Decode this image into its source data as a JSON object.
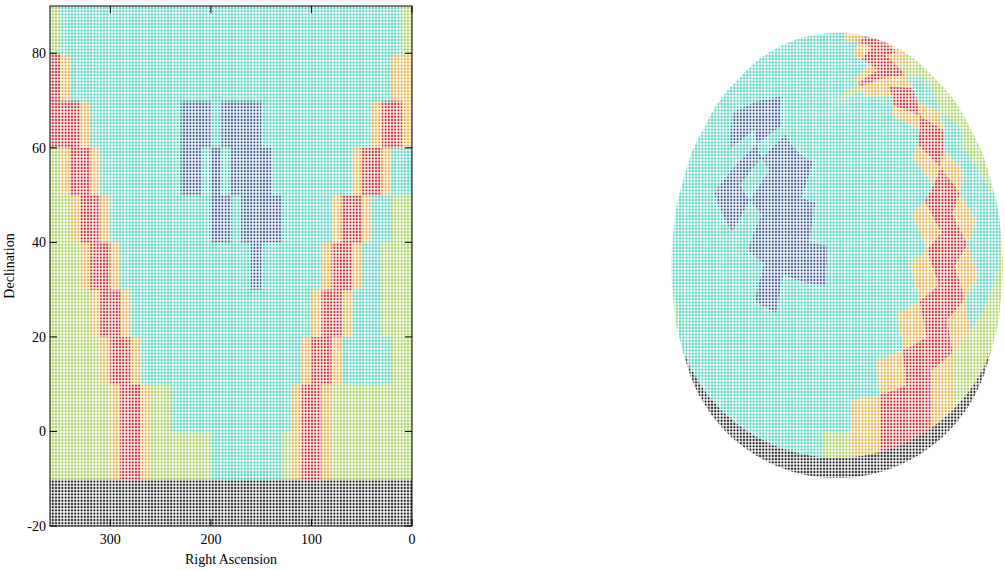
{
  "chart_data": {
    "type": "heatmap",
    "xlabel": "Right Ascension",
    "ylabel": "Declination",
    "xlim": [
      360,
      0
    ],
    "ylim": [
      -20,
      90
    ],
    "xticks": [
      300,
      200,
      100,
      0
    ],
    "yticks": [
      -20,
      0,
      20,
      40,
      60,
      80
    ],
    "colors": [
      "#222222",
      "#3c5a96",
      "#3fcfb8",
      "#9ccf4a",
      "#e8a834",
      "#c0282a"
    ],
    "xbins": [
      360,
      350,
      340,
      330,
      320,
      310,
      300,
      290,
      280,
      270,
      260,
      250,
      240,
      230,
      220,
      210,
      200,
      190,
      180,
      170,
      160,
      150,
      140,
      130,
      120,
      110,
      100,
      90,
      80,
      70,
      60,
      50,
      40,
      30,
      20,
      10,
      0
    ],
    "ybins": [
      -20,
      -10,
      0,
      10,
      20,
      30,
      40,
      50,
      60,
      70,
      80,
      90
    ],
    "cells": [
      [
        0,
        0,
        0,
        0,
        0,
        0,
        0,
        0,
        0,
        0,
        0,
        0,
        0,
        0,
        0,
        0,
        0,
        0,
        0,
        0,
        0,
        0,
        0,
        0,
        0,
        0,
        0,
        0,
        0,
        0,
        0,
        0,
        0,
        0,
        0,
        0
      ],
      [
        3,
        3,
        3,
        3,
        3,
        3,
        4,
        5,
        5,
        4,
        3,
        3,
        3,
        3,
        3,
        3,
        2,
        2,
        2,
        2,
        2,
        2,
        2,
        3,
        4,
        5,
        5,
        4,
        3,
        3,
        3,
        3,
        3,
        3,
        3,
        3
      ],
      [
        3,
        3,
        3,
        3,
        3,
        3,
        4,
        5,
        5,
        4,
        3,
        3,
        2,
        2,
        2,
        2,
        2,
        2,
        2,
        2,
        2,
        2,
        2,
        2,
        4,
        5,
        5,
        4,
        3,
        3,
        3,
        3,
        3,
        3,
        3,
        3
      ],
      [
        3,
        3,
        3,
        3,
        3,
        4,
        5,
        5,
        4,
        2,
        2,
        2,
        2,
        2,
        2,
        2,
        2,
        2,
        2,
        2,
        2,
        2,
        2,
        2,
        2,
        4,
        5,
        5,
        4,
        2,
        2,
        2,
        2,
        2,
        3,
        3
      ],
      [
        3,
        3,
        3,
        3,
        4,
        5,
        5,
        4,
        2,
        2,
        2,
        2,
        2,
        2,
        2,
        2,
        2,
        2,
        2,
        2,
        2,
        2,
        2,
        2,
        2,
        2,
        4,
        5,
        5,
        4,
        2,
        2,
        2,
        3,
        3,
        3
      ],
      [
        3,
        3,
        3,
        4,
        5,
        5,
        4,
        2,
        2,
        2,
        2,
        2,
        2,
        2,
        2,
        2,
        2,
        2,
        2,
        2,
        1,
        2,
        2,
        2,
        2,
        2,
        2,
        4,
        5,
        5,
        4,
        2,
        2,
        3,
        3,
        3
      ],
      [
        3,
        3,
        4,
        5,
        5,
        4,
        2,
        2,
        2,
        2,
        2,
        2,
        2,
        2,
        2,
        2,
        1,
        1,
        2,
        1,
        1,
        1,
        1,
        2,
        2,
        2,
        2,
        2,
        4,
        5,
        5,
        4,
        2,
        2,
        3,
        3
      ],
      [
        3,
        4,
        5,
        5,
        4,
        2,
        2,
        2,
        2,
        2,
        2,
        2,
        2,
        1,
        1,
        2,
        1,
        2,
        1,
        1,
        1,
        1,
        2,
        2,
        2,
        2,
        2,
        2,
        2,
        2,
        4,
        5,
        5,
        4,
        2,
        2
      ],
      [
        5,
        5,
        5,
        4,
        2,
        2,
        2,
        2,
        2,
        2,
        2,
        2,
        2,
        1,
        1,
        1,
        2,
        1,
        1,
        1,
        1,
        2,
        2,
        2,
        2,
        2,
        2,
        2,
        2,
        2,
        2,
        2,
        4,
        5,
        5,
        4
      ],
      [
        5,
        4,
        2,
        2,
        2,
        2,
        2,
        2,
        2,
        2,
        2,
        2,
        2,
        2,
        2,
        2,
        2,
        2,
        2,
        2,
        2,
        2,
        2,
        2,
        2,
        2,
        2,
        2,
        2,
        2,
        2,
        2,
        2,
        2,
        4,
        4
      ],
      [
        3,
        2,
        2,
        2,
        2,
        2,
        2,
        2,
        2,
        2,
        2,
        2,
        2,
        2,
        2,
        2,
        2,
        2,
        2,
        2,
        2,
        2,
        2,
        2,
        2,
        2,
        2,
        2,
        2,
        2,
        2,
        2,
        2,
        2,
        2,
        3
      ]
    ]
  }
}
